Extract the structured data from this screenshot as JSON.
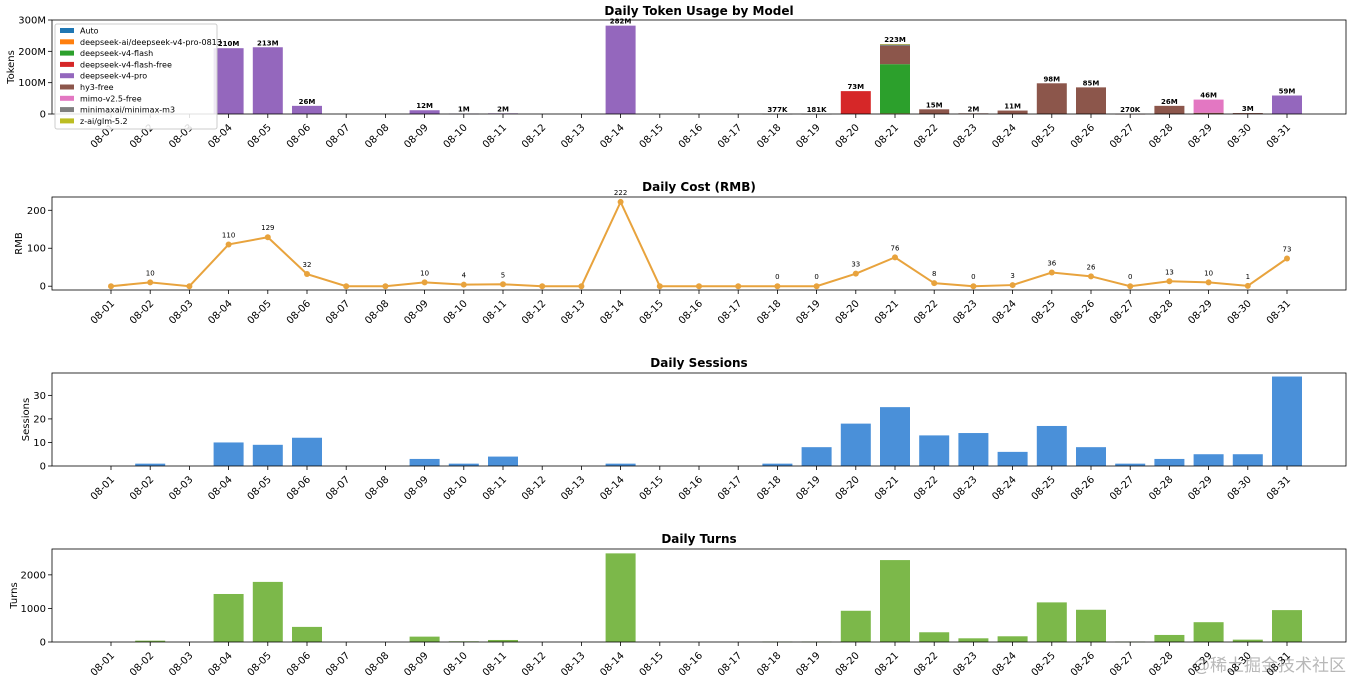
{
  "watermark": "@稀土掘金技术社区",
  "colors": {
    "Auto": "#1f77b4",
    "deepseek-ai/deepseek-v4-pro-0813": "#ff7f0e",
    "deepseek-v4-flash": "#2ca02c",
    "deepseek-v4-flash-free": "#d62728",
    "deepseek-v4-pro": "#9467bd",
    "hy3-free": "#8c564b",
    "mimo-v2.5-free": "#e377c2",
    "minimaxai/minimax-m3": "#7f7f7f",
    "z-ai/glm-5.2": "#bcbd22",
    "cost_line": "#e8a33d",
    "sessions_bar": "#4a90d9",
    "turns_bar": "#7cb84a"
  },
  "chart_data": [
    {
      "type": "bar",
      "stacked": true,
      "title": "Daily Token Usage by Model",
      "ylabel": "Tokens",
      "ylim": [
        0,
        300000000
      ],
      "yticks": [
        0,
        100000000,
        200000000,
        300000000
      ],
      "ytick_labels": [
        "0",
        "100M",
        "200M",
        "300M"
      ],
      "legend_position": "upper-left",
      "categories": [
        "08-01",
        "08-02",
        "08-03",
        "08-04",
        "08-05",
        "08-06",
        "08-07",
        "08-08",
        "08-09",
        "08-10",
        "08-11",
        "08-12",
        "08-13",
        "08-14",
        "08-15",
        "08-16",
        "08-17",
        "08-18",
        "08-19",
        "08-20",
        "08-21",
        "08-22",
        "08-23",
        "08-24",
        "08-25",
        "08-26",
        "08-27",
        "08-28",
        "08-29",
        "08-30",
        "08-31"
      ],
      "series": [
        {
          "name": "Auto",
          "values": [
            0,
            0,
            0,
            0,
            0,
            0,
            0,
            0,
            0,
            0,
            0,
            0,
            0,
            0,
            0,
            0,
            0,
            0,
            0,
            0,
            0,
            0,
            0,
            0,
            0,
            0,
            0,
            0,
            0,
            0,
            0
          ]
        },
        {
          "name": "deepseek-ai/deepseek-v4-pro-0813",
          "values": [
            0,
            0,
            0,
            0,
            0,
            0,
            0,
            0,
            0,
            0,
            0,
            0,
            0,
            0,
            0,
            0,
            0,
            0,
            0,
            0,
            2000000,
            0,
            0,
            0,
            0,
            0,
            0,
            0,
            0,
            0,
            0
          ]
        },
        {
          "name": "deepseek-v4-flash",
          "values": [
            0,
            0,
            0,
            0,
            0,
            0,
            0,
            0,
            0,
            0,
            0,
            0,
            0,
            0,
            0,
            0,
            0,
            0,
            0,
            0,
            157000000,
            0,
            0,
            0,
            0,
            0,
            0,
            0,
            0,
            0,
            0
          ]
        },
        {
          "name": "deepseek-v4-flash-free",
          "values": [
            0,
            0,
            0,
            0,
            0,
            0,
            0,
            0,
            0,
            0,
            0,
            0,
            0,
            0,
            0,
            0,
            0,
            0,
            0,
            73000000,
            0,
            0,
            0,
            0,
            0,
            0,
            0,
            0,
            0,
            0,
            0
          ]
        },
        {
          "name": "deepseek-v4-pro",
          "values": [
            0,
            0,
            0,
            210000000,
            213000000,
            26000000,
            0,
            0,
            12000000,
            1000000,
            2000000,
            0,
            0,
            282000000,
            0,
            0,
            0,
            0,
            0,
            0,
            0,
            0,
            0,
            0,
            0,
            0,
            0,
            0,
            0,
            0,
            59000000
          ]
        },
        {
          "name": "hy3-free",
          "values": [
            0,
            0,
            0,
            0,
            0,
            0,
            0,
            0,
            0,
            0,
            0,
            0,
            0,
            0,
            0,
            0,
            0,
            0,
            0,
            0,
            58000000,
            15000000,
            2000000,
            11000000,
            98000000,
            85000000,
            270000,
            26000000,
            4000000,
            3000000,
            0
          ]
        },
        {
          "name": "mimo-v2.5-free",
          "values": [
            0,
            0,
            0,
            0,
            0,
            0,
            0,
            0,
            0,
            0,
            0,
            0,
            0,
            0,
            0,
            0,
            0,
            0,
            0,
            0,
            0,
            0,
            0,
            0,
            0,
            0,
            0,
            0,
            42000000,
            0,
            0
          ]
        },
        {
          "name": "minimaxai/minimax-m3",
          "values": [
            0,
            0,
            0,
            0,
            0,
            0,
            0,
            0,
            0,
            0,
            0,
            0,
            0,
            0,
            0,
            0,
            0,
            377000,
            181000,
            0,
            5000000,
            0,
            0,
            0,
            0,
            0,
            0,
            0,
            0,
            0,
            0
          ]
        },
        {
          "name": "z-ai/glm-5.2",
          "values": [
            0,
            0,
            0,
            0,
            0,
            0,
            0,
            0,
            0,
            0,
            0,
            0,
            0,
            0,
            0,
            0,
            0,
            0,
            0,
            0,
            1000000,
            0,
            0,
            0,
            0,
            0,
            0,
            0,
            0,
            0,
            0
          ]
        }
      ],
      "data_labels": [
        "",
        "",
        "",
        "210M",
        "213M",
        "26M",
        "",
        "",
        "12M",
        "1M",
        "2M",
        "",
        "",
        "282M",
        "",
        "",
        "",
        "377K",
        "181K",
        "73M",
        "223M",
        "15M",
        "2M",
        "11M",
        "98M",
        "85M",
        "270K",
        "26M",
        "46M",
        "3M",
        "59M"
      ]
    },
    {
      "type": "line",
      "title": "Daily Cost (RMB)",
      "ylabel": "RMB",
      "ylim": [
        -10,
        235
      ],
      "yticks": [
        0,
        100,
        200
      ],
      "ytick_labels": [
        "0",
        "100",
        "200"
      ],
      "x": [
        "08-01",
        "08-02",
        "08-03",
        "08-04",
        "08-05",
        "08-06",
        "08-07",
        "08-08",
        "08-09",
        "08-10",
        "08-11",
        "08-12",
        "08-13",
        "08-14",
        "08-15",
        "08-16",
        "08-17",
        "08-18",
        "08-19",
        "08-20",
        "08-21",
        "08-22",
        "08-23",
        "08-24",
        "08-25",
        "08-26",
        "08-27",
        "08-28",
        "08-29",
        "08-30",
        "08-31"
      ],
      "values": [
        0,
        10,
        0,
        110,
        129,
        32,
        0,
        0,
        10,
        4,
        5,
        0,
        0,
        222,
        0,
        0,
        0,
        0,
        0,
        33,
        76,
        8,
        0,
        3,
        36,
        26,
        0,
        13,
        10,
        1,
        73
      ],
      "data_labels": [
        "",
        "10",
        "",
        "110",
        "129",
        "32",
        "",
        "",
        "10",
        "4",
        "5",
        "",
        "",
        "222",
        "",
        "",
        "",
        "0",
        "0",
        "33",
        "76",
        "8",
        "0",
        "3",
        "36",
        "26",
        "0",
        "13",
        "10",
        "1",
        "73"
      ]
    },
    {
      "type": "bar",
      "title": "Daily Sessions",
      "ylabel": "Sessions",
      "ylim": [
        0,
        39.5
      ],
      "yticks": [
        0,
        10,
        20,
        30
      ],
      "ytick_labels": [
        "0",
        "10",
        "20",
        "30"
      ],
      "categories": [
        "08-01",
        "08-02",
        "08-03",
        "08-04",
        "08-05",
        "08-06",
        "08-07",
        "08-08",
        "08-09",
        "08-10",
        "08-11",
        "08-12",
        "08-13",
        "08-14",
        "08-15",
        "08-16",
        "08-17",
        "08-18",
        "08-19",
        "08-20",
        "08-21",
        "08-22",
        "08-23",
        "08-24",
        "08-25",
        "08-26",
        "08-27",
        "08-28",
        "08-29",
        "08-30",
        "08-31"
      ],
      "values": [
        0,
        1,
        0,
        10,
        9,
        12,
        0,
        0,
        3,
        1,
        4,
        0,
        0,
        1,
        0,
        0,
        0,
        1,
        8,
        18,
        25,
        13,
        14,
        6,
        17,
        8,
        1,
        3,
        5,
        5,
        38
      ]
    },
    {
      "type": "bar",
      "title": "Daily Turns",
      "ylabel": "Turns",
      "ylim": [
        0,
        2770
      ],
      "yticks": [
        0,
        1000,
        2000
      ],
      "ytick_labels": [
        "0",
        "1000",
        "2000"
      ],
      "categories": [
        "08-01",
        "08-02",
        "08-03",
        "08-04",
        "08-05",
        "08-06",
        "08-07",
        "08-08",
        "08-09",
        "08-10",
        "08-11",
        "08-12",
        "08-13",
        "08-14",
        "08-15",
        "08-16",
        "08-17",
        "08-18",
        "08-19",
        "08-20",
        "08-21",
        "08-22",
        "08-23",
        "08-24",
        "08-25",
        "08-26",
        "08-27",
        "08-28",
        "08-29",
        "08-30",
        "08-31"
      ],
      "values": [
        0,
        40,
        0,
        1430,
        1790,
        450,
        0,
        0,
        160,
        20,
        60,
        0,
        0,
        2640,
        0,
        0,
        0,
        10,
        10,
        930,
        2440,
        290,
        110,
        170,
        1180,
        960,
        10,
        210,
        590,
        70,
        950
      ]
    }
  ]
}
